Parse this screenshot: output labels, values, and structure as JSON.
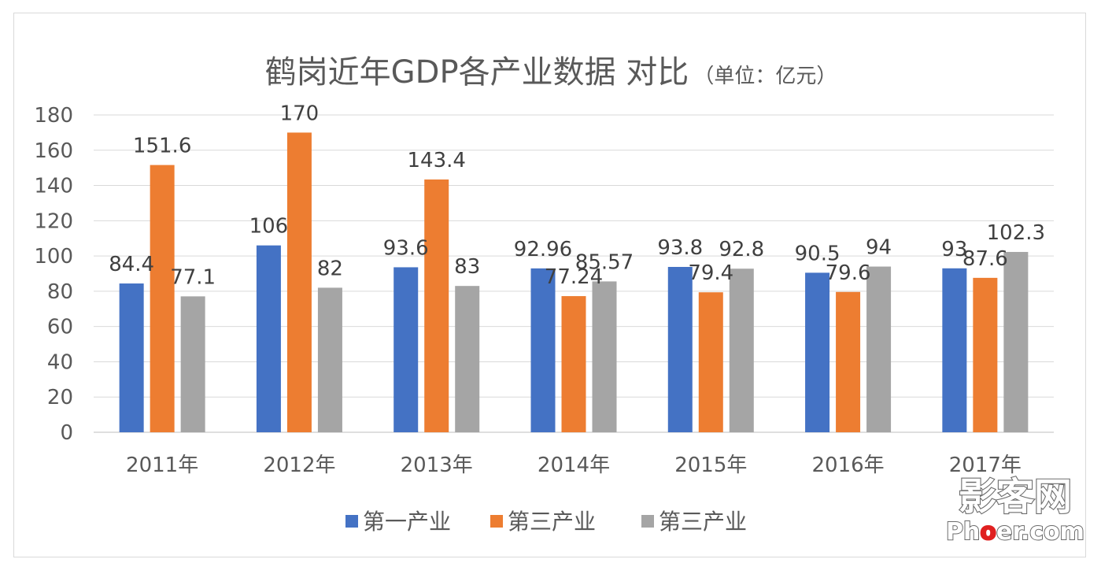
{
  "watermark": {
    "cn": "影客网",
    "en_prefix": "Ph",
    "en_highlight": "o",
    "en_suffix": "er.com",
    "highlight_color": "#e02020"
  },
  "chart_data": {
    "type": "bar",
    "title": "鹤岗近年GDP各产业数据 对比",
    "subtitle": "（单位：亿元）",
    "categories": [
      "2011年",
      "2012年",
      "2013年",
      "2014年",
      "2015年",
      "2016年",
      "2017年"
    ],
    "series": [
      {
        "name": "第一产业",
        "color": "#4472c4",
        "values": [
          84.4,
          106,
          93.6,
          92.96,
          93.8,
          90.5,
          93
        ],
        "labels": [
          "84.4",
          "106",
          "93.6",
          "92.96",
          "93.8",
          "90.5",
          "93"
        ]
      },
      {
        "name": "第三产业",
        "color": "#ed7d31",
        "values": [
          151.6,
          170,
          143.4,
          77.24,
          79.4,
          79.6,
          87.6
        ],
        "labels": [
          "151.6",
          "170",
          "143.4",
          "77.24",
          "79.4",
          "79.6",
          "87.6"
        ]
      },
      {
        "name": "第三产业",
        "color": "#a5a5a5",
        "values": [
          77.1,
          82,
          83,
          85.57,
          92.8,
          94,
          102.3
        ],
        "labels": [
          "77.1",
          "82",
          "83",
          "85.57",
          "92.8",
          "94",
          "102.3"
        ]
      }
    ],
    "yticks": [
      "0",
      "20",
      "40",
      "60",
      "80",
      "100",
      "120",
      "140",
      "160",
      "180"
    ],
    "ylim": [
      0,
      180
    ],
    "grid": true,
    "legend": "bottom",
    "xlabel": "",
    "ylabel": ""
  }
}
